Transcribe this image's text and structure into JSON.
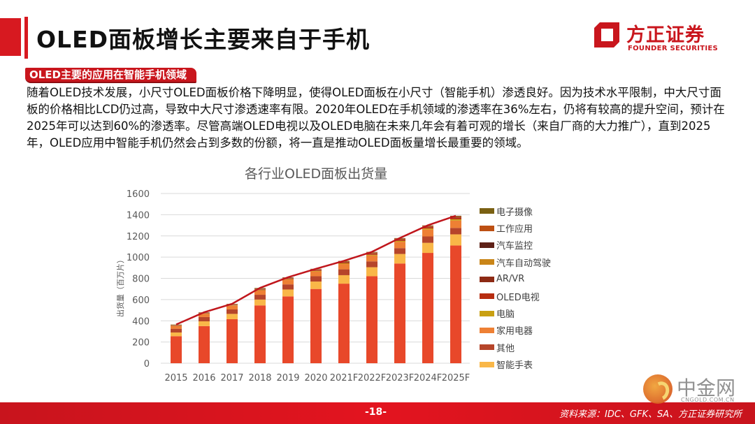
{
  "header": {
    "title": "OLED面板增长主要来自于手机",
    "subtitle": "OLED主要的应用在智能手机领域"
  },
  "logo": {
    "name_cn": "方正证券",
    "name_en": "FOUNDER SECURITIES",
    "brand_color": "#c9161d"
  },
  "body": {
    "paragraph": "随着OLED技术发展，小尺寸OLED面板价格下降明显，使得OLED面板在小尺寸（智能手机）渗透良好。因为技术水平限制，中大尺寸面板的价格相比LCD仍过高，导致中大尺寸渗透速率有限。2020年OLED在手机领域的渗透率在36%左右，仍将有较高的提升空间，预计在2025年可以达到60%的渗透率。尽管高端OLED电视以及OLED电脑在未来几年会有着可观的增长（来自厂商的大力推广），直到2025年，OLED应用中智能手机仍然会占到多数的份额，将一直是推动OLED面板量增长最重要的领域。"
  },
  "footer": {
    "page_number": "-18-",
    "source": "资料来源：IDC、GFK、SA、方正证券研究所"
  },
  "watermark": {
    "name_cn": "中金网",
    "domain": "CNGOLD.COM.CN"
  },
  "chart_data": {
    "type": "bar",
    "stacked": true,
    "title": "各行业OLED面板出货量",
    "xlabel": "",
    "ylabel": "出货量（百万片）",
    "ylim": [
      0,
      1600
    ],
    "yticks": [
      0,
      200,
      400,
      600,
      800,
      1000,
      1200,
      1400,
      1600
    ],
    "grid": true,
    "legend_position": "right",
    "categories": [
      "2015",
      "2016",
      "2017",
      "2018",
      "2019",
      "2020",
      "2021F",
      "2022F",
      "2023F",
      "2024F",
      "2025F"
    ],
    "series": [
      {
        "name": "智能手机",
        "color": "#e8482a",
        "in_legend": false,
        "values": [
          255,
          350,
          415,
          545,
          630,
          700,
          750,
          820,
          940,
          1040,
          1110
        ]
      },
      {
        "name": "智能手表",
        "color": "#f9b748",
        "values": [
          35,
          45,
          50,
          55,
          65,
          70,
          80,
          85,
          90,
          95,
          105
        ]
      },
      {
        "name": "其他",
        "color": "#b6452a",
        "values": [
          35,
          40,
          42,
          45,
          48,
          50,
          55,
          55,
          55,
          60,
          60
        ]
      },
      {
        "name": "家用电器",
        "color": "#ee8034",
        "values": [
          25,
          30,
          35,
          40,
          45,
          45,
          50,
          55,
          60,
          65,
          70
        ]
      },
      {
        "name": "电脑",
        "color": "#c9a012",
        "values": [
          2,
          2,
          3,
          4,
          4,
          5,
          6,
          7,
          8,
          10,
          12
        ]
      },
      {
        "name": "OLED电视",
        "color": "#b72d10",
        "values": [
          3,
          3,
          4,
          5,
          6,
          7,
          8,
          10,
          10,
          12,
          14
        ]
      },
      {
        "name": "AR/VR",
        "color": "#8d2a14",
        "values": [
          2,
          2,
          2,
          3,
          3,
          4,
          5,
          6,
          6,
          7,
          8
        ]
      },
      {
        "name": "汽车自动驾驶",
        "color": "#c98518",
        "values": [
          2,
          2,
          2,
          3,
          3,
          3,
          4,
          4,
          4,
          4,
          4
        ]
      },
      {
        "name": "汽车监控",
        "color": "#5e2117",
        "values": [
          2,
          2,
          2,
          3,
          3,
          3,
          3,
          3,
          3,
          3,
          3
        ]
      },
      {
        "name": "工作应用",
        "color": "#bd5013",
        "values": [
          2,
          2,
          3,
          3,
          2,
          2,
          3,
          3,
          3,
          3,
          3
        ]
      },
      {
        "name": "电子摄像",
        "color": "#7a6012",
        "values": [
          2,
          2,
          2,
          4,
          1,
          1,
          1,
          2,
          1,
          1,
          1
        ]
      }
    ],
    "total_line": {
      "name": "合计",
      "color": "#c0161c",
      "values": [
        365,
        480,
        560,
        710,
        810,
        890,
        965,
        1050,
        1180,
        1300,
        1390
      ]
    },
    "legend_order": [
      "电子摄像",
      "工作应用",
      "汽车监控",
      "汽车自动驾驶",
      "AR/VR",
      "OLED电视",
      "电脑",
      "家用电器",
      "其他",
      "智能手表"
    ]
  }
}
